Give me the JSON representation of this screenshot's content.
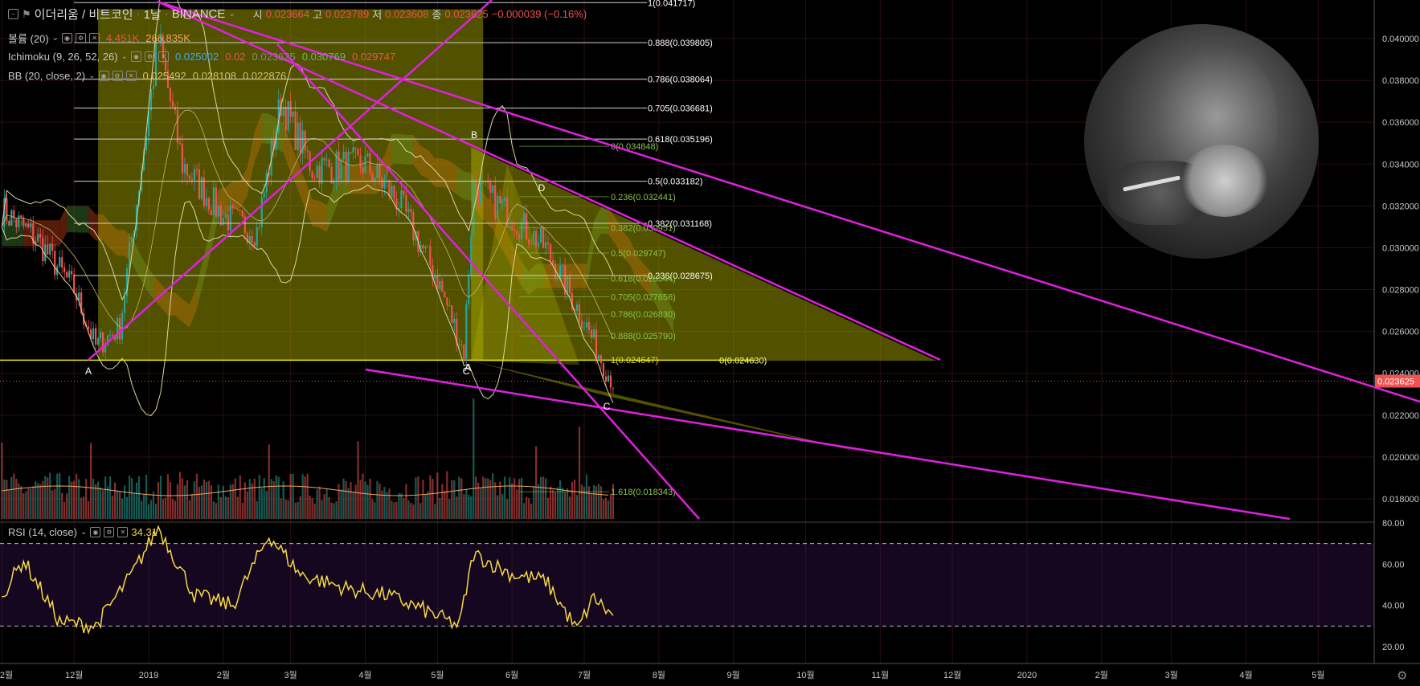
{
  "header": {
    "symbol_title": "이더리움 / 비트코인",
    "interval": "1날",
    "exchange": "BINANCE",
    "ohlc": [
      {
        "label": "시",
        "value": "0.023664"
      },
      {
        "label": "고",
        "value": "0.023789"
      },
      {
        "label": "저",
        "value": "0.023608"
      },
      {
        "label": "종",
        "value": "0.023625"
      }
    ],
    "change": "−0.000039 (−0.16%)"
  },
  "indicators": [
    {
      "name": "볼륨 (20)",
      "values": [
        {
          "v": "4.451K",
          "color": "#ef5350"
        },
        {
          "v": "266.835K",
          "color": "#f4a460"
        }
      ]
    },
    {
      "name": "Ichimoku (9, 26, 52, 26)",
      "values": [
        {
          "v": "0.025002",
          "color": "#42a5f5"
        },
        {
          "v": "0.02",
          "color": "#ef5350"
        },
        {
          "v": "0.023625",
          "color": "#888888"
        },
        {
          "v": "0.030769",
          "color": "#66bb6a"
        },
        {
          "v": "0.029747",
          "color": "#ef5350"
        }
      ]
    },
    {
      "name": "BB (20, close, 2)",
      "values": [
        {
          "v": "0.025492",
          "color": "#d4c26a"
        },
        {
          "v": "0.028108",
          "color": "#d4c26a"
        },
        {
          "v": "0.022876",
          "color": "#d4c26a"
        }
      ]
    }
  ],
  "rsi_legend": {
    "name": "RSI (14, close)",
    "value": "34.31"
  },
  "price_axis": {
    "ticks": [
      "0.040000",
      "0.038000",
      "0.036000",
      "0.034000",
      "0.032000",
      "0.030000",
      "0.028000",
      "0.026000",
      "0.024000",
      "0.022000",
      "0.020000",
      "0.018000"
    ],
    "last_price": "0.023625"
  },
  "rsi_axis": {
    "ticks": [
      "80.00",
      "60.00",
      "40.00",
      "20.00"
    ]
  },
  "time_axis": {
    "ticks": [
      "2월",
      "12월",
      "2019",
      "2월",
      "3월",
      "4월",
      "5월",
      "6월",
      "7월",
      "8월",
      "9월",
      "10월",
      "11월",
      "12월",
      "2020",
      "2월",
      "3월",
      "4월",
      "5월"
    ]
  },
  "fib_major": [
    "1(0.041717)",
    "0.888(0.039805)",
    "0.786(0.038064)",
    "0.705(0.036681)",
    "0.618(0.035196)",
    "0.5(0.033182)",
    "0.382(0.031168)",
    "0.236(0.028675)"
  ],
  "fib_minor": [
    "0(0.034848)",
    "0.236(0.032441)",
    "0.382(0.030951)",
    "0.5(0.029747)",
    "0.618(0.028544)",
    "0.705(0.027656)",
    "0.786(0.026830)",
    "0.888(0.025790)",
    "1(0.024647)",
    "0(0.024630)",
    "1.618(0.018343)"
  ],
  "points": [
    "A",
    "B",
    "C",
    "D",
    "A",
    "C"
  ],
  "colors": {
    "up": "#26a69a",
    "down": "#ef5350",
    "pink": "#e020e0",
    "fib_green": "#8bc34a",
    "rsi_line": "#f5d742",
    "bb": "#d8d7a0",
    "triangle": "#b3b300",
    "support": "#e6e600"
  },
  "chart_data": [
    {
      "type": "line",
      "title": "이더리움 / 비트코인",
      "x_range": [
        "2018-11-01",
        "2020-05-31"
      ],
      "ylim": [
        0.0172,
        0.0418
      ],
      "approx_close": [
        {
          "x": "2018-11-01",
          "y": 0.0318
        },
        {
          "x": "2018-11-15",
          "y": 0.0305
        },
        {
          "x": "2018-12-01",
          "y": 0.028
        },
        {
          "x": "2018-12-10",
          "y": 0.0253
        },
        {
          "x": "2018-12-20",
          "y": 0.0262
        },
        {
          "x": "2019-01-01",
          "y": 0.0365
        },
        {
          "x": "2019-01-05",
          "y": 0.04
        },
        {
          "x": "2019-01-15",
          "y": 0.034
        },
        {
          "x": "2019-02-01",
          "y": 0.0315
        },
        {
          "x": "2019-02-15",
          "y": 0.0308
        },
        {
          "x": "2019-02-25",
          "y": 0.037
        },
        {
          "x": "2019-03-10",
          "y": 0.0338
        },
        {
          "x": "2019-04-01",
          "y": 0.034
        },
        {
          "x": "2019-04-15",
          "y": 0.0322
        },
        {
          "x": "2019-05-01",
          "y": 0.0285
        },
        {
          "x": "2019-05-12",
          "y": 0.025
        },
        {
          "x": "2019-05-16",
          "y": 0.033
        },
        {
          "x": "2019-06-01",
          "y": 0.0315
        },
        {
          "x": "2019-06-15",
          "y": 0.03
        },
        {
          "x": "2019-07-01",
          "y": 0.0265
        },
        {
          "x": "2019-07-10",
          "y": 0.0242
        },
        {
          "x": "2019-07-13",
          "y": 0.0236
        }
      ]
    },
    {
      "type": "line",
      "title": "RSI (14, close)",
      "ylim": [
        16,
        82
      ],
      "approx_values": [
        {
          "x": "2018-11-01",
          "y": 45
        },
        {
          "x": "2018-11-10",
          "y": 62
        },
        {
          "x": "2018-11-25",
          "y": 32
        },
        {
          "x": "2018-12-10",
          "y": 30
        },
        {
          "x": "2018-12-25",
          "y": 55
        },
        {
          "x": "2019-01-05",
          "y": 78
        },
        {
          "x": "2019-01-20",
          "y": 45
        },
        {
          "x": "2019-02-05",
          "y": 40
        },
        {
          "x": "2019-02-20",
          "y": 74
        },
        {
          "x": "2019-03-05",
          "y": 55
        },
        {
          "x": "2019-03-25",
          "y": 48
        },
        {
          "x": "2019-04-10",
          "y": 45
        },
        {
          "x": "2019-04-25",
          "y": 38
        },
        {
          "x": "2019-05-10",
          "y": 30
        },
        {
          "x": "2019-05-16",
          "y": 65
        },
        {
          "x": "2019-06-01",
          "y": 55
        },
        {
          "x": "2019-06-15",
          "y": 52
        },
        {
          "x": "2019-06-28",
          "y": 28
        },
        {
          "x": "2019-07-05",
          "y": 44
        },
        {
          "x": "2019-07-13",
          "y": 34.31
        }
      ]
    }
  ]
}
